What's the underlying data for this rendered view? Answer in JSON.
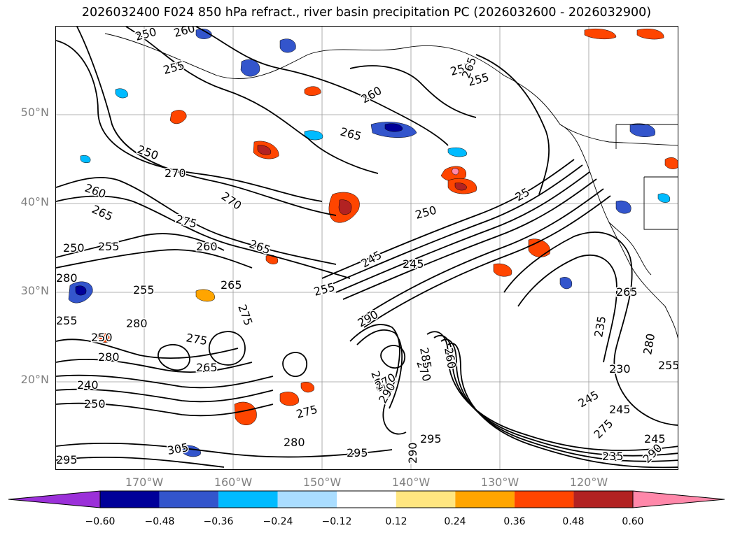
{
  "title": "2026032400 F024 850 hPa refract., river basin precipitation PC (2026032600 - 2026032900)",
  "map": {
    "lat_labels": [
      "50°N",
      "40°N",
      "30°N",
      "20°N"
    ],
    "lon_labels": [
      "170°W",
      "160°W",
      "150°W",
      "140°W",
      "130°W",
      "120°W"
    ],
    "contour_labels": [
      "250",
      "260",
      "255",
      "255",
      "260",
      "265",
      "250",
      "270",
      "260",
      "270",
      "265",
      "275",
      "260",
      "265",
      "250",
      "255",
      "280",
      "255",
      "275",
      "265",
      "255",
      "280",
      "275",
      "250",
      "280",
      "265",
      "240",
      "250",
      "265",
      "270",
      "250",
      "245",
      "245",
      "255",
      "290",
      "270",
      "285",
      "260",
      "275",
      "280",
      "295",
      "295",
      "290",
      "295",
      "305",
      "290",
      "255",
      "265",
      "275",
      "265",
      "235",
      "230",
      "245",
      "245",
      "245",
      "235",
      "290",
      "280",
      "255",
      "25"
    ],
    "colors": {
      "contour": "#000000",
      "grid": "#808080",
      "land_border": "#000000"
    }
  },
  "colorbar": {
    "ticks": [
      "−0.60",
      "−0.48",
      "−0.36",
      "−0.24",
      "−0.12",
      "0.12",
      "0.24",
      "0.36",
      "0.48",
      "0.60"
    ],
    "colors": [
      "#9b30d9",
      "#000099",
      "#3355cc",
      "#00bbff",
      "#aaddff",
      "#ffffff",
      "#ffe680",
      "#ffa500",
      "#ff4500",
      "#b22222",
      "#ff88aa"
    ]
  }
}
